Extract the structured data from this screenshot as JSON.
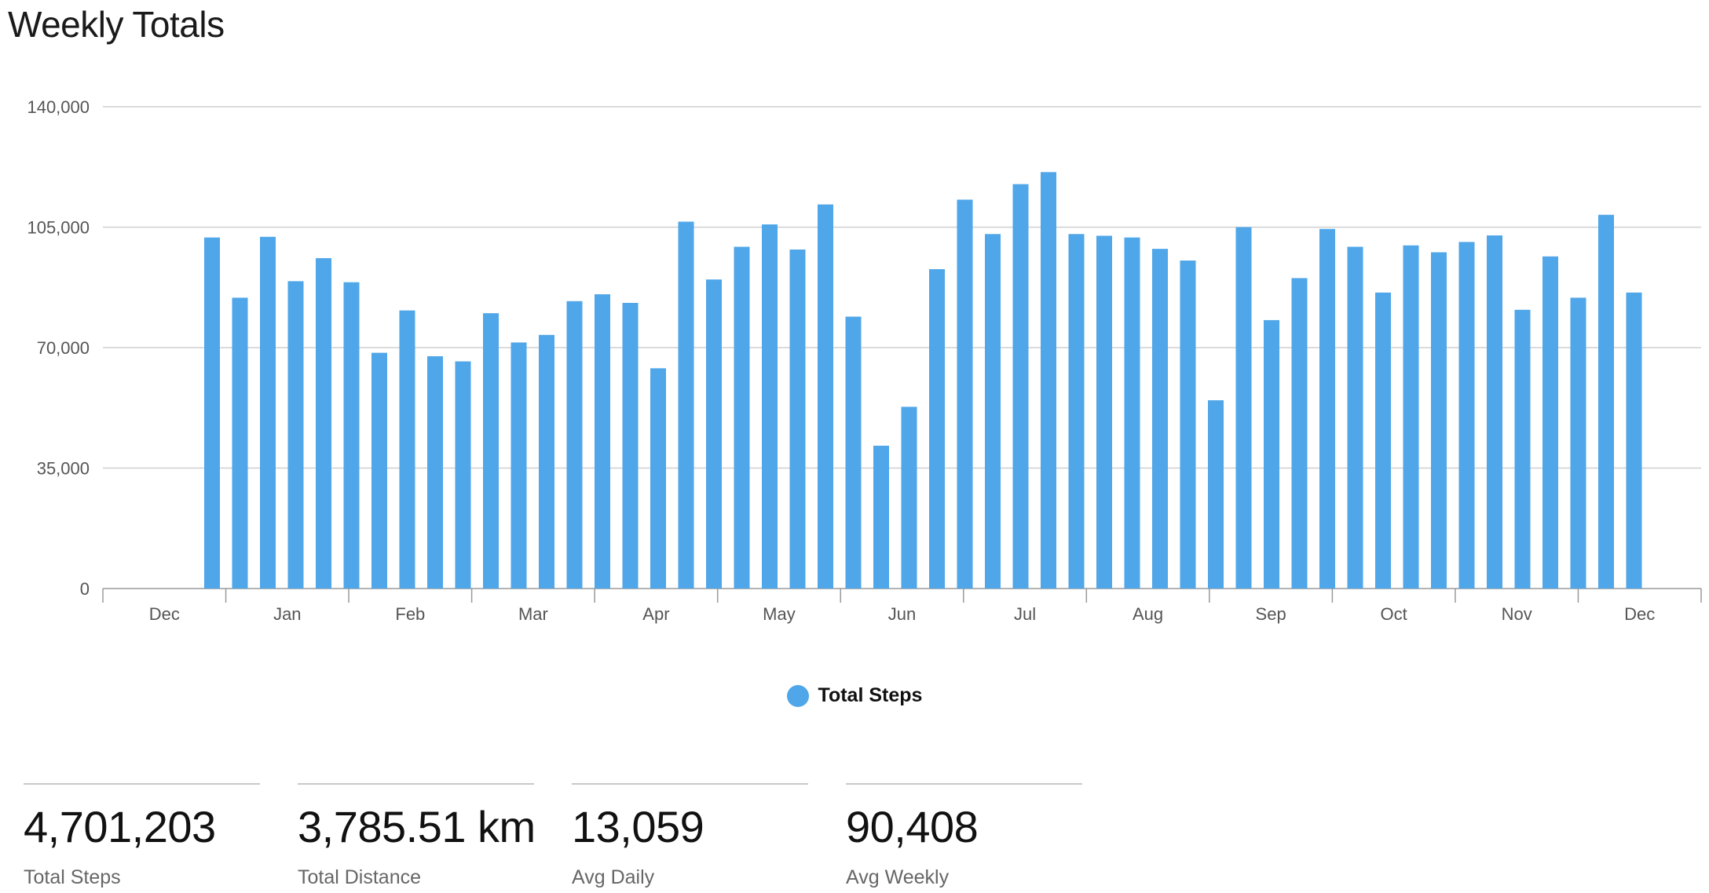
{
  "title": "Weekly Totals",
  "colors": {
    "bar": "#4fa6e8",
    "grid": "#cfcfcf",
    "axis": "#9a9a9a"
  },
  "chart_data": {
    "type": "bar",
    "title": "Weekly Totals",
    "xlabel": "",
    "ylabel": "",
    "ylim": [
      0,
      140000
    ],
    "yticks": [
      "0",
      "35,000",
      "70,000",
      "105,000",
      "140,000"
    ],
    "ytick_values": [
      0,
      35000,
      70000,
      105000,
      140000
    ],
    "month_labels": [
      "Dec",
      "Jan",
      "Feb",
      "Mar",
      "Apr",
      "May",
      "Jun",
      "Jul",
      "Aug",
      "Sep",
      "Oct",
      "Nov",
      "Dec"
    ],
    "grid": true,
    "legend": "bottom-center",
    "series": [
      {
        "name": "Total Steps",
        "values": [
          102000,
          84500,
          102200,
          89300,
          96000,
          89000,
          68500,
          80800,
          67500,
          66000,
          80000,
          71500,
          73700,
          83500,
          85500,
          83000,
          64000,
          106600,
          89800,
          99300,
          105800,
          98500,
          111600,
          79000,
          41500,
          52800,
          92800,
          113000,
          103000,
          117500,
          121000,
          103000,
          102500,
          102000,
          98700,
          95300,
          54700,
          105000,
          78000,
          90200,
          104500,
          99300,
          86000,
          99700,
          97700,
          100700,
          102600,
          81000,
          96500,
          84500,
          108600,
          86000
        ]
      }
    ]
  },
  "stats": [
    {
      "value": "4,701,203",
      "label": "Total Steps"
    },
    {
      "value": "3,785.51 km",
      "label": "Total Distance"
    },
    {
      "value": "13,059",
      "label": "Avg Daily"
    },
    {
      "value": "90,408",
      "label": "Avg Weekly"
    }
  ]
}
